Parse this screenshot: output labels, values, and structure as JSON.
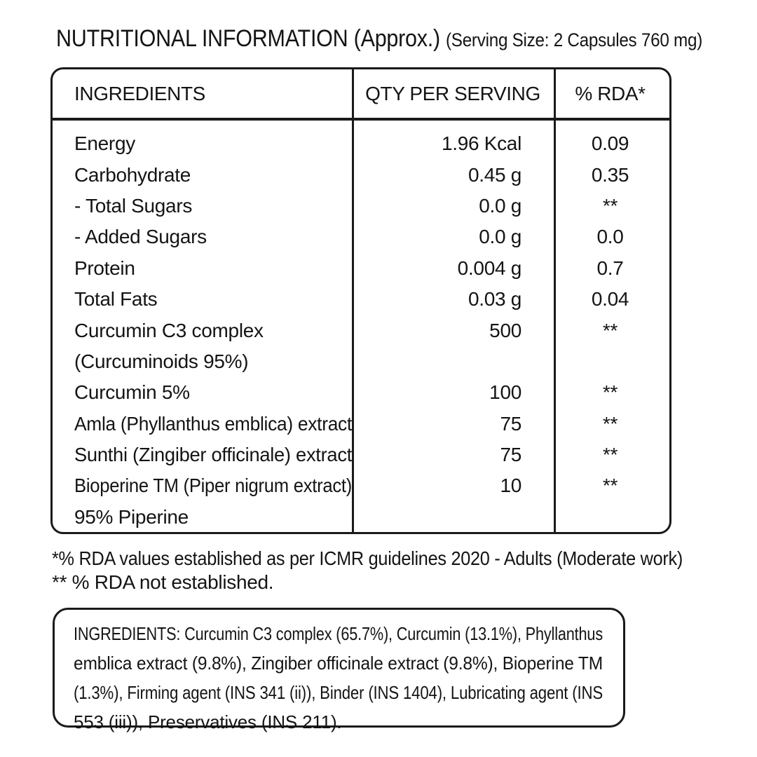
{
  "title": {
    "main": "NUTRITIONAL INFORMATION (Approx.)",
    "serving": "(Serving Size: 2 Capsules 760 mg)"
  },
  "table": {
    "headers": [
      "INGREDIENTS",
      "QTY PER SERVING",
      "% RDA*"
    ],
    "rows": [
      {
        "ingredient": "Energy",
        "qty": "1.96 Kcal",
        "rda": "0.09"
      },
      {
        "ingredient": "Carbohydrate",
        "qty": "0.45 g",
        "rda": "0.35"
      },
      {
        "ingredient": "- Total Sugars",
        "qty": "0.0 g",
        "rda": "**"
      },
      {
        "ingredient": "- Added Sugars",
        "qty": "0.0 g",
        "rda": "0.0"
      },
      {
        "ingredient": "Protein",
        "qty": "0.004 g",
        "rda": "0.7"
      },
      {
        "ingredient": "Total Fats",
        "qty": "0.03 g",
        "rda": "0.04"
      },
      {
        "ingredient": "Curcumin C3 complex",
        "qty": "500",
        "rda": "**"
      },
      {
        "ingredient": "(Curcuminoids 95%)",
        "qty": "",
        "rda": ""
      },
      {
        "ingredient": "Curcumin 5%",
        "qty": "100",
        "rda": "**"
      },
      {
        "ingredient": "Amla (Phyllanthus emblica) extract",
        "qty": "75",
        "rda": "**"
      },
      {
        "ingredient": "Sunthi (Zingiber officinale) extract",
        "qty": "75",
        "rda": "**"
      },
      {
        "ingredient": "Bioperine TM (Piper nigrum extract)",
        "qty": "10",
        "rda": "**"
      },
      {
        "ingredient": "95% Piperine",
        "qty": "",
        "rda": ""
      }
    ]
  },
  "footnotes": [
    "*% RDA values established as per ICMR guidelines 2020 - Adults (Moderate work)",
    "** % RDA not established."
  ],
  "ingredients_box": {
    "lines": [
      "INGREDIENTS: Curcumin C3 complex (65.7%), Curcumin (13.1%), Phyllanthus",
      "emblica extract (9.8%), Zingiber officinale extract (9.8%), Bioperine TM",
      "(1.3%), Firming agent (INS 341 (ii)), Binder (INS 1404), Lubricating agent (INS",
      "553 (iii)), Preservatives (INS 211)."
    ]
  }
}
